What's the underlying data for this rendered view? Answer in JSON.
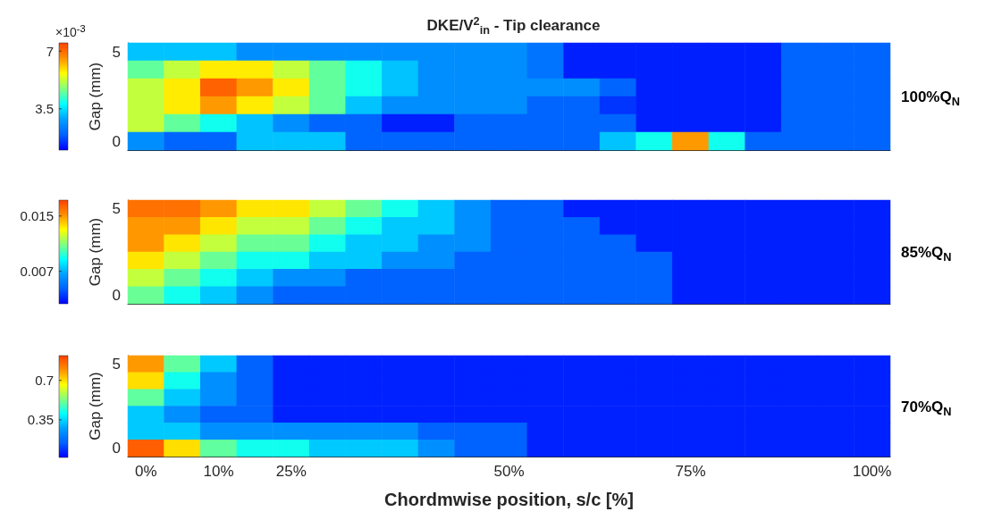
{
  "chart_data": [
    {
      "type": "heatmap",
      "title": "DKE/V$^{2}$$_{in}$ - Tip clearance",
      "ylabel": "Gap (mm)",
      "y2label": "100%Q$_{N}$",
      "clabel": "×10$^{-3}$",
      "tick_labels": "y",
      "categories": [
        null,
        null,
        null,
        null,
        null,
        null,
        null,
        null,
        null,
        null,
        null,
        null,
        null,
        null,
        null,
        null,
        null,
        null,
        null,
        null,
        null
      ],
      "y_categories": [
        "5",
        null,
        null,
        null,
        null,
        "0"
      ],
      "cells": [
        [
          3.2,
          3.2,
          3.2,
          2.6,
          2.6,
          2.6,
          2.6,
          2.6,
          2.6,
          2.6,
          2.6,
          2.2,
          1.3,
          1.3,
          1.3,
          1.3,
          1.3,
          1.3,
          2.0,
          2.0,
          2.0
        ],
        [
          4.5,
          5.2,
          5.8,
          5.8,
          5.2,
          4.5,
          3.9,
          3.2,
          2.6,
          2.6,
          2.6,
          2.2,
          1.3,
          1.3,
          1.3,
          1.3,
          1.3,
          1.3,
          2.0,
          2.0,
          2.0
        ],
        [
          5.2,
          5.8,
          7.1,
          6.5,
          5.8,
          4.5,
          3.9,
          3.2,
          2.6,
          2.6,
          2.6,
          2.6,
          2.6,
          2.0,
          1.3,
          1.3,
          1.3,
          1.3,
          2.0,
          2.0,
          2.0
        ],
        [
          5.2,
          5.8,
          6.5,
          5.8,
          5.2,
          4.5,
          3.2,
          2.6,
          2.6,
          2.6,
          2.6,
          2.0,
          2.0,
          1.5,
          1.3,
          1.3,
          1.3,
          1.3,
          2.0,
          2.0,
          2.0
        ],
        [
          5.2,
          4.5,
          3.9,
          3.2,
          2.6,
          2.0,
          2.0,
          1.3,
          1.3,
          2.0,
          2.0,
          2.0,
          2.0,
          2.0,
          1.3,
          1.3,
          1.3,
          1.3,
          2.0,
          2.0,
          2.0
        ],
        [
          2.6,
          2.0,
          2.0,
          3.2,
          3.2,
          3.2,
          2.0,
          2.0,
          2.0,
          2.0,
          2.0,
          2.0,
          2.0,
          3.2,
          3.9,
          6.5,
          3.9,
          2.0,
          2.0,
          2.0,
          2.0
        ]
      ],
      "clim": [
        1.0,
        7.5
      ],
      "cticks": [
        3.5,
        7
      ]
    },
    {
      "type": "heatmap",
      "ylabel": "Gap (mm)",
      "y2label": "85%Q$_{N}$",
      "tick_labels": "y",
      "categories": [
        null,
        null,
        null,
        null,
        null,
        null,
        null,
        null,
        null,
        null,
        null,
        null,
        null,
        null,
        null,
        null,
        null,
        null,
        null,
        null,
        null
      ],
      "y_categories": [
        "5",
        null,
        null,
        null,
        null,
        "0"
      ],
      "cells": [
        [
          0.016,
          0.016,
          0.015,
          0.0135,
          0.0135,
          0.012,
          0.0105,
          0.009,
          0.0075,
          0.006,
          0.0045,
          0.0045,
          0.003,
          0.003,
          0.003,
          0.003,
          0.003,
          0.003,
          0.003,
          0.003,
          0.003
        ],
        [
          0.015,
          0.015,
          0.0135,
          0.012,
          0.012,
          0.0105,
          0.009,
          0.0075,
          0.0075,
          0.006,
          0.0045,
          0.0045,
          0.0045,
          0.003,
          0.003,
          0.003,
          0.003,
          0.003,
          0.003,
          0.003,
          0.003
        ],
        [
          0.015,
          0.0135,
          0.012,
          0.0105,
          0.0105,
          0.009,
          0.0075,
          0.0075,
          0.006,
          0.006,
          0.0045,
          0.0045,
          0.0045,
          0.0045,
          0.003,
          0.003,
          0.003,
          0.003,
          0.003,
          0.003,
          0.003
        ],
        [
          0.0135,
          0.012,
          0.0105,
          0.009,
          0.009,
          0.0075,
          0.0075,
          0.006,
          0.006,
          0.0045,
          0.0045,
          0.0045,
          0.0045,
          0.0045,
          0.0045,
          0.003,
          0.003,
          0.003,
          0.003,
          0.003,
          0.003
        ],
        [
          0.012,
          0.0105,
          0.009,
          0.0075,
          0.006,
          0.006,
          0.0045,
          0.0045,
          0.0045,
          0.0045,
          0.0045,
          0.0045,
          0.0045,
          0.0045,
          0.0045,
          0.003,
          0.003,
          0.003,
          0.003,
          0.003,
          0.003
        ],
        [
          0.0105,
          0.009,
          0.0075,
          0.006,
          0.0045,
          0.0045,
          0.0045,
          0.0045,
          0.0045,
          0.0045,
          0.0045,
          0.0045,
          0.0045,
          0.0045,
          0.0045,
          0.003,
          0.003,
          0.003,
          0.003,
          0.003,
          0.003
        ]
      ],
      "clim": [
        0.0023,
        0.0173
      ],
      "cticks": [
        0.007,
        0.015
      ]
    },
    {
      "type": "heatmap",
      "xlabel": "Chordmwise position, s/c [%]",
      "ylabel": "Gap (mm)",
      "y2label": "70%Q$_{N}$",
      "categories": [
        "0%",
        null,
        "10%",
        null,
        "25%",
        null,
        null,
        null,
        null,
        null,
        "50%",
        null,
        null,
        null,
        null,
        "75%",
        null,
        null,
        null,
        null,
        "100%"
      ],
      "y_categories": [
        "5",
        null,
        null,
        null,
        null,
        "0"
      ],
      "cells": [
        [
          0.78,
          0.5,
          0.33,
          0.15,
          0.06,
          0.06,
          0.06,
          0.06,
          0.06,
          0.06,
          0.06,
          0.06,
          0.06,
          0.06,
          0.06,
          0.06,
          0.06,
          0.06,
          0.06,
          0.06,
          0.06
        ],
        [
          0.7,
          0.42,
          0.24,
          0.15,
          0.06,
          0.06,
          0.06,
          0.06,
          0.06,
          0.06,
          0.06,
          0.06,
          0.06,
          0.06,
          0.06,
          0.06,
          0.06,
          0.06,
          0.06,
          0.06,
          0.06
        ],
        [
          0.5,
          0.33,
          0.24,
          0.15,
          0.06,
          0.06,
          0.06,
          0.06,
          0.06,
          0.06,
          0.06,
          0.06,
          0.06,
          0.06,
          0.06,
          0.06,
          0.06,
          0.06,
          0.06,
          0.06,
          0.06
        ],
        [
          0.33,
          0.24,
          0.15,
          0.15,
          0.06,
          0.06,
          0.06,
          0.06,
          0.06,
          0.06,
          0.06,
          0.06,
          0.06,
          0.06,
          0.06,
          0.06,
          0.06,
          0.06,
          0.06,
          0.06,
          0.06
        ],
        [
          0.33,
          0.33,
          0.24,
          0.24,
          0.24,
          0.24,
          0.24,
          0.24,
          0.15,
          0.15,
          0.15,
          0.06,
          0.06,
          0.06,
          0.06,
          0.06,
          0.06,
          0.06,
          0.06,
          0.06,
          0.06
        ],
        [
          0.87,
          0.7,
          0.5,
          0.42,
          0.42,
          0.33,
          0.33,
          0.33,
          0.24,
          0.15,
          0.15,
          0.06,
          0.06,
          0.06,
          0.06,
          0.06,
          0.06,
          0.06,
          0.06,
          0.06,
          0.06
        ]
      ],
      "clim": [
        0.016,
        0.92
      ],
      "cticks": [
        0.35,
        0.7
      ]
    }
  ]
}
